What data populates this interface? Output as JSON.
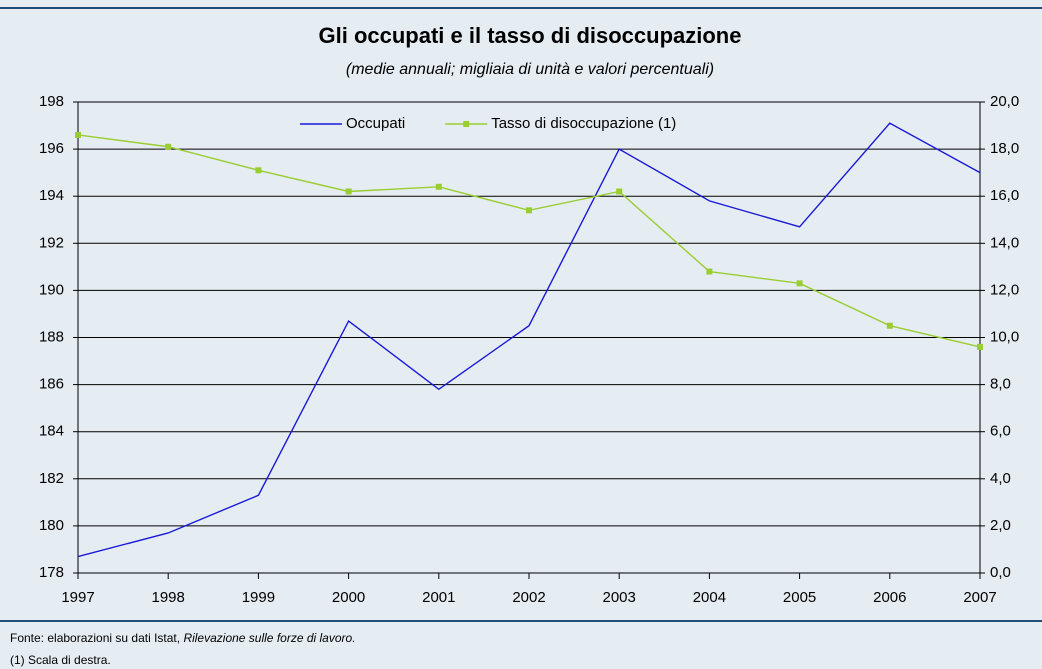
{
  "chart_data": {
    "type": "line",
    "title": "Gli occupati e il tasso di disoccupazione",
    "subtitle": "(medie annuali; migliaia di unità e valori percentuali)",
    "x": [
      1997,
      1998,
      1999,
      2000,
      2001,
      2002,
      2003,
      2004,
      2005,
      2006,
      2007
    ],
    "xlim": [
      1997,
      2007
    ],
    "xticks": [
      1997,
      1998,
      1999,
      2000,
      2001,
      2002,
      2003,
      2004,
      2005,
      2006,
      2007
    ],
    "series": [
      {
        "name": "Occupati",
        "color": "#1a1ad6",
        "values": [
          178.7,
          179.7,
          181.3,
          188.7,
          185.8,
          188.5,
          196.0,
          193.8,
          192.7,
          197.1,
          195.0
        ]
      },
      {
        "name": "Tasso di disoccupazione (1)",
        "color": "#9acd32",
        "axis": "y2",
        "marker": "square",
        "values": [
          18.6,
          18.1,
          17.1,
          16.2,
          16.4,
          15.4,
          16.2,
          12.8,
          12.3,
          10.5,
          9.6
        ]
      }
    ],
    "ylim": [
      178,
      198
    ],
    "yticks": [
      178,
      180,
      182,
      184,
      186,
      188,
      190,
      192,
      194,
      196,
      198
    ],
    "y2lim": [
      0,
      20
    ],
    "y2ticks": [
      {
        "value": 0,
        "label": "0,0"
      },
      {
        "value": 2,
        "label": "2,0"
      },
      {
        "value": 4,
        "label": "4,0"
      },
      {
        "value": 6,
        "label": "6,0"
      },
      {
        "value": 8,
        "label": "8,0"
      },
      {
        "value": 10,
        "label": "10,0"
      },
      {
        "value": 12,
        "label": "12,0"
      },
      {
        "value": 14,
        "label": "14,0"
      },
      {
        "value": 16,
        "label": "16,0"
      },
      {
        "value": 18,
        "label": "18,0"
      },
      {
        "value": 20,
        "label": "20,0"
      }
    ],
    "grid": true,
    "legend": "top",
    "source": {
      "text": "Fonte: elaborazioni su dati Istat, ",
      "italic": "Rilevazione sulle forze di lavoro."
    },
    "note": "(1) Scala di destra."
  }
}
